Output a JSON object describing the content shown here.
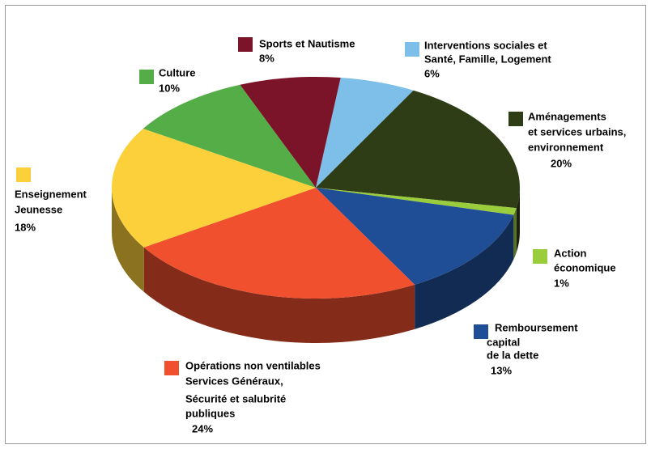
{
  "chart_data": {
    "type": "pie",
    "categories": [
      [
        "Interventions sociales et",
        "Santé, Famille, Logement"
      ],
      [
        "Aménagements",
        "et services urbains,",
        "environnement"
      ],
      [
        "Action",
        "économique"
      ],
      [
        "Remboursement",
        "capital",
        "de la dette"
      ],
      [
        "Opérations non ventilables",
        "Services Généraux,",
        "Sécurité et salubrité",
        "publiques"
      ],
      [
        "Enseignement",
        "Jeunesse"
      ],
      [
        "Culture"
      ],
      [
        "Sports et Nautisme"
      ]
    ],
    "values": [
      6,
      20,
      1,
      13,
      24,
      18,
      10,
      8
    ],
    "value_labels": [
      "6%",
      "20%",
      "1%",
      "13%",
      "24%",
      "18%",
      "10%",
      "8%"
    ],
    "colors": [
      "#7dbfe8",
      "#2f3d17",
      "#9acd3c",
      "#1f4e96",
      "#f0502e",
      "#fcd03a",
      "#55ad48",
      "#7b1428"
    ]
  }
}
